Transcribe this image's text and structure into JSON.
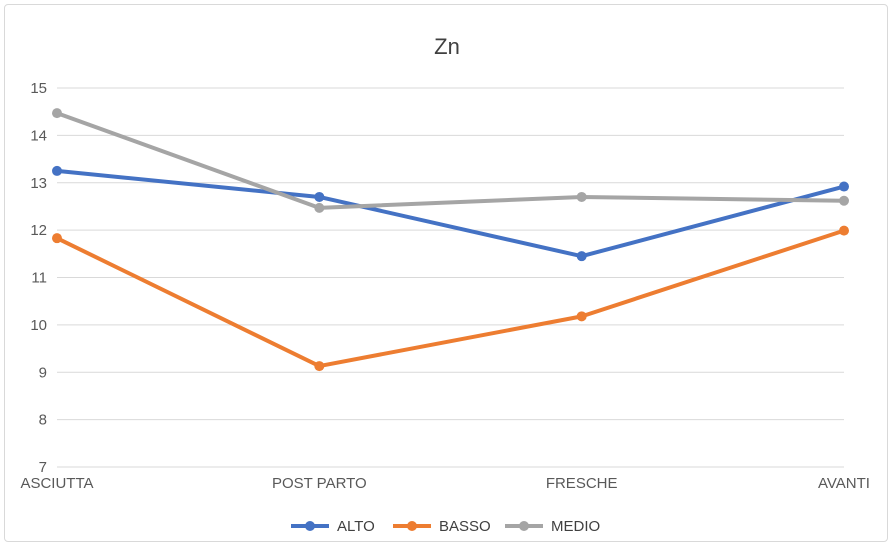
{
  "chart_data": {
    "type": "line",
    "title": "Zn",
    "categories": [
      "ASCIUTTA",
      "POST PARTO",
      "FRESCHE",
      "AVANTI"
    ],
    "ylim": [
      7,
      15
    ],
    "yticks": [
      7,
      8,
      9,
      10,
      11,
      12,
      13,
      14,
      15
    ],
    "grid": true,
    "legend_position": "bottom",
    "series": [
      {
        "name": "ALTO",
        "color": "#4472C4",
        "values": [
          13.25,
          12.7,
          11.45,
          12.92
        ]
      },
      {
        "name": "BASSO",
        "color": "#ED7D31",
        "values": [
          11.83,
          9.13,
          10.18,
          11.99
        ]
      },
      {
        "name": "MEDIO",
        "color": "#A5A5A5",
        "values": [
          14.47,
          12.47,
          12.7,
          12.62
        ]
      }
    ]
  }
}
